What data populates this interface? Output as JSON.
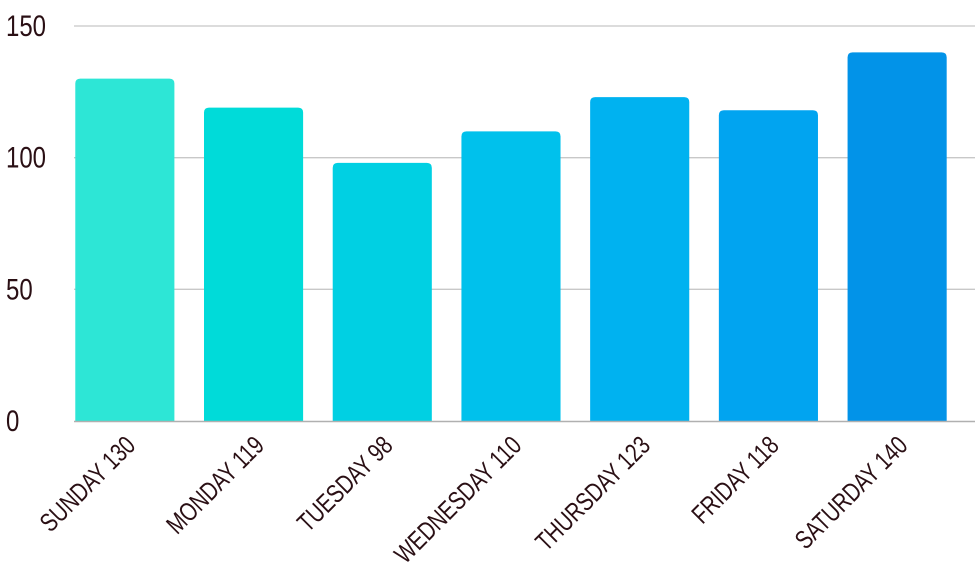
{
  "chart_data": {
    "type": "bar",
    "categories": [
      "SUNDAY",
      "MONDAY",
      "TUESDAY",
      "WEDNESDAY",
      "THURSDAY",
      "FRIDAY",
      "SATURDAY"
    ],
    "values": [
      130,
      119,
      98,
      110,
      123,
      118,
      140
    ],
    "category_labels": [
      "SUNDAY 130",
      "MONDAY 119",
      "TUESDAY 98",
      "WEDNESDAY 110",
      "THURSDAY 123",
      "FRIDAY 118",
      "SATURDAY 140"
    ],
    "bar_colors": [
      "#2de6d6",
      "#00dbd9",
      "#00d0e3",
      "#00c1ec",
      "#00b2f0",
      "#01a4f0",
      "#0293e8"
    ],
    "ylim": [
      0,
      150
    ],
    "yticks": [
      0,
      50,
      100,
      150
    ],
    "title": "",
    "xlabel": "",
    "ylabel": "",
    "grid": true,
    "legend": "none"
  }
}
